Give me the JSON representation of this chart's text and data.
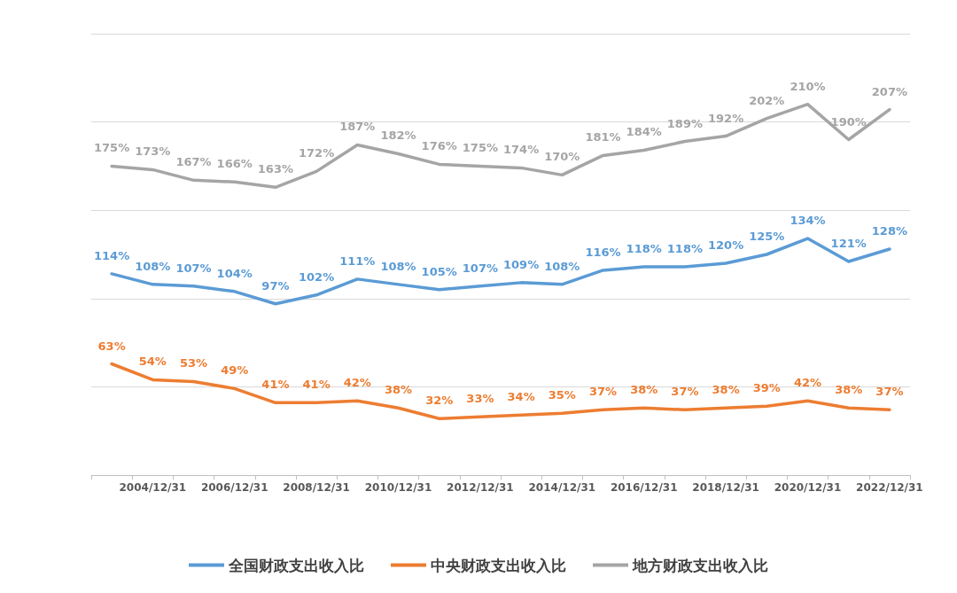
{
  "chart_data": {
    "type": "line",
    "categories": [
      null,
      "2004/12/31",
      null,
      "2006/12/31",
      null,
      "2008/12/31",
      null,
      "2010/12/31",
      null,
      "2012/12/31",
      null,
      "2014/12/31",
      null,
      "2016/12/31",
      null,
      "2018/12/31",
      null,
      "2020/12/31",
      null,
      "2022/12/31"
    ],
    "series": [
      {
        "name": "全国财政支出收入比",
        "color": "#5b9bd5",
        "values": [
          114,
          108,
          107,
          104,
          97,
          102,
          111,
          108,
          105,
          107,
          109,
          108,
          116,
          118,
          118,
          120,
          125,
          134,
          121,
          128
        ],
        "value_labels": [
          "114%",
          "108%",
          "107%",
          "104%",
          "97%",
          "102%",
          "111%",
          "108%",
          "105%",
          "107%",
          "109%",
          "108%",
          "116%",
          "118%",
          "118%",
          "120%",
          "125%",
          "134%",
          "121%",
          "128%"
        ]
      },
      {
        "name": "中央财政支出收入比",
        "color": "#ed7d31",
        "values": [
          63,
          54,
          53,
          49,
          41,
          41,
          42,
          38,
          32,
          33,
          34,
          35,
          37,
          38,
          37,
          38,
          39,
          42,
          38,
          37
        ],
        "value_labels": [
          "63%",
          "54%",
          "53%",
          "49%",
          "41%",
          "41%",
          "42%",
          "38%",
          "32%",
          "33%",
          "34%",
          "35%",
          "37%",
          "38%",
          "37%",
          "38%",
          "39%",
          "42%",
          "38%",
          "37%"
        ]
      },
      {
        "name": "地方财政支出收入比",
        "color": "#a5a5a5",
        "values": [
          175,
          173,
          167,
          166,
          163,
          172,
          187,
          182,
          176,
          175,
          174,
          170,
          181,
          184,
          189,
          192,
          202,
          210,
          190,
          207
        ],
        "value_labels": [
          "175%",
          "173%",
          "167%",
          "166%",
          "163%",
          "172%",
          "187%",
          "182%",
          "176%",
          "175%",
          "174%",
          "170%",
          "181%",
          "184%",
          "189%",
          "192%",
          "202%",
          "210%",
          "190%",
          "207%"
        ]
      }
    ],
    "ylim": [
      0,
      250
    ],
    "yticks": [
      {
        "value": 0,
        "label": null
      },
      {
        "value": 50,
        "label": null
      },
      {
        "value": 100,
        "label": null
      },
      {
        "value": 150,
        "label": null
      },
      {
        "value": 200,
        "label": null
      },
      {
        "value": 250,
        "label": null
      }
    ],
    "tick_labels": "x",
    "grid": "y",
    "legend": "bottom",
    "marker": "none"
  }
}
